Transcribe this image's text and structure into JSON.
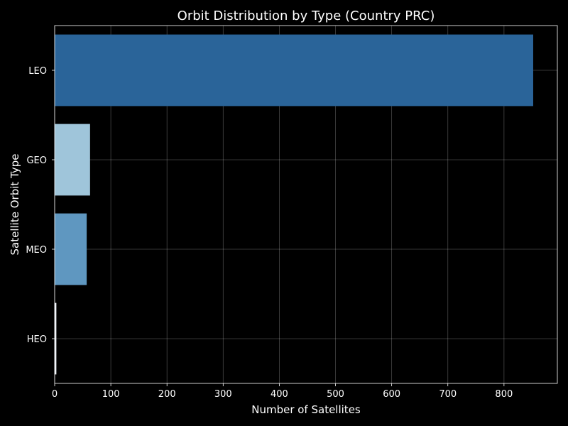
{
  "chart_data": {
    "type": "bar",
    "orientation": "horizontal",
    "title": "Orbit Distribution by Type (Country PRC)",
    "xlabel": "Number of Satellites",
    "ylabel": "Satellite Orbit Type",
    "categories": [
      "LEO",
      "GEO",
      "MEO",
      "HEO"
    ],
    "values": [
      852,
      63,
      57,
      3
    ],
    "colors": [
      "#2a6499",
      "#9fc5da",
      "#5f97c0",
      "#f0f5fb"
    ],
    "xlim": [
      0,
      895
    ],
    "xticks": [
      0,
      100,
      200,
      300,
      400,
      500,
      600,
      700,
      800
    ],
    "grid": true,
    "background": "#000000",
    "foreground": "#ffffff"
  }
}
